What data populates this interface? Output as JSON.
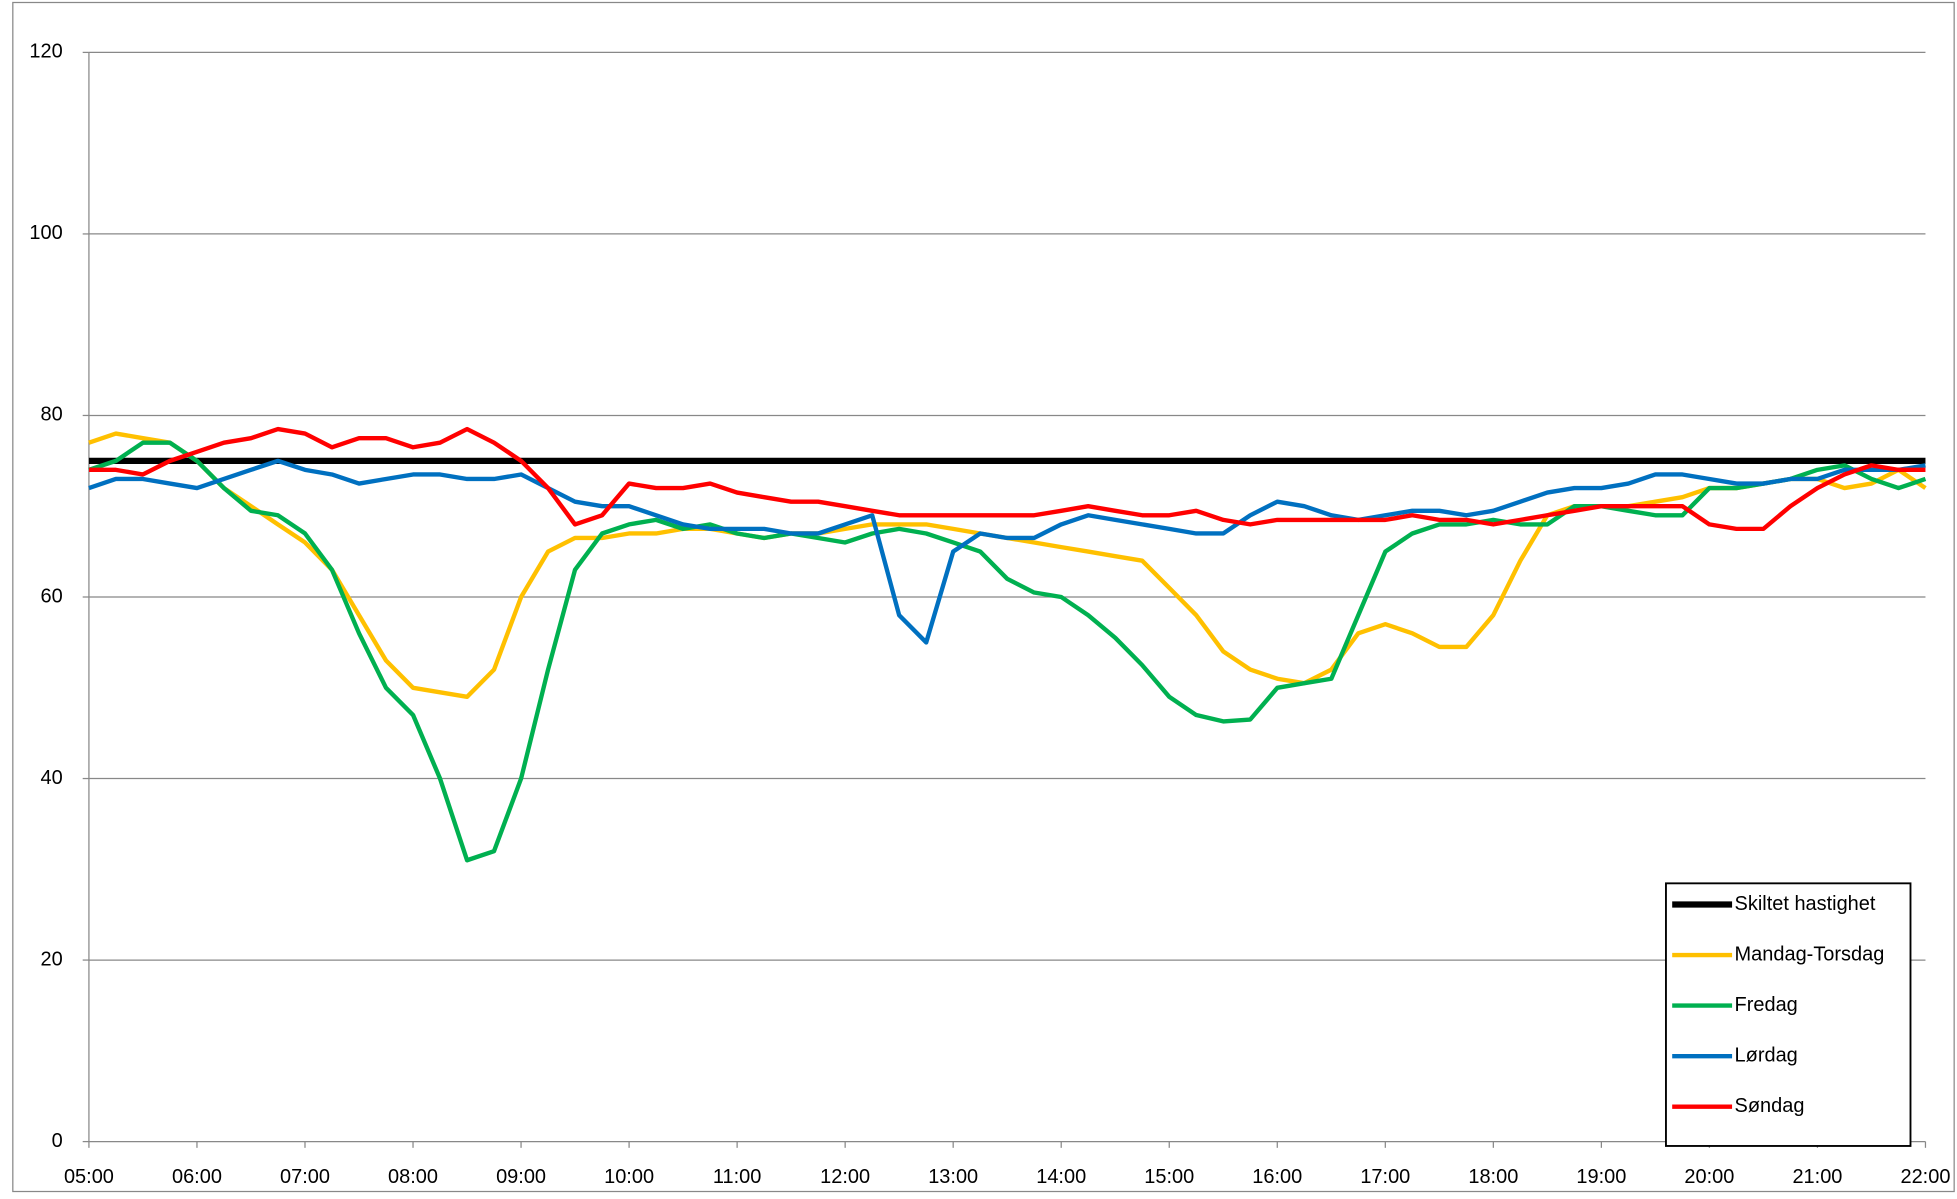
{
  "chart_data": {
    "type": "line",
    "categories": [
      "05:00",
      null,
      null,
      null,
      "06:00",
      null,
      null,
      null,
      "07:00",
      null,
      null,
      null,
      "08:00",
      null,
      null,
      null,
      "09:00",
      null,
      null,
      null,
      "10:00",
      null,
      null,
      null,
      "11:00",
      null,
      null,
      null,
      "12:00",
      null,
      null,
      null,
      "13:00",
      null,
      null,
      null,
      "14:00",
      null,
      null,
      null,
      "15:00",
      null,
      null,
      null,
      "16:00",
      null,
      null,
      null,
      "17:00",
      null,
      null,
      null,
      "18:00",
      null,
      null,
      null,
      "19:00",
      null,
      null,
      null,
      "20:00",
      null,
      null,
      null,
      "21:00",
      null,
      null,
      null,
      "22:00"
    ],
    "series": [
      {
        "name": "Skiltet hastighet",
        "color": "#000000",
        "values": [
          75,
          75,
          75,
          75,
          75,
          75,
          75,
          75,
          75,
          75,
          75,
          75,
          75,
          75,
          75,
          75,
          75,
          75,
          75,
          75,
          75,
          75,
          75,
          75,
          75,
          75,
          75,
          75,
          75,
          75,
          75,
          75,
          75,
          75,
          75,
          75,
          75,
          75,
          75,
          75,
          75,
          75,
          75,
          75,
          75,
          75,
          75,
          75,
          75,
          75,
          75,
          75,
          75,
          75,
          75,
          75,
          75,
          75,
          75,
          75,
          75,
          75,
          75,
          75,
          75,
          75,
          75,
          75,
          75
        ]
      },
      {
        "name": "Mandag-Torsdag",
        "color": "#FFC000",
        "values": [
          77,
          78,
          77.5,
          77,
          75,
          72,
          70,
          68,
          66,
          63,
          58,
          53,
          50,
          49.5,
          49,
          52,
          60,
          65,
          66.5,
          66.5,
          67,
          67,
          67.5,
          67.5,
          67,
          66.5,
          67,
          67,
          67.5,
          68,
          68,
          68,
          67.5,
          67,
          66.5,
          66,
          65.5,
          65,
          64.5,
          64,
          61,
          58,
          54,
          52,
          51,
          50.5,
          52,
          56,
          57,
          56,
          54.5,
          54.5,
          58,
          64,
          69,
          70,
          70,
          70,
          70.5,
          71,
          72,
          72,
          72.5,
          73,
          73,
          72,
          72.5,
          74,
          72
        ]
      },
      {
        "name": "Fredag",
        "color": "#00B050",
        "values": [
          74,
          75,
          77,
          77,
          75,
          72,
          69.5,
          69,
          67,
          63,
          56,
          50,
          47,
          40,
          31,
          32,
          40,
          52,
          63,
          67,
          68,
          68.5,
          67.5,
          68,
          67,
          66.5,
          67,
          66.5,
          66,
          67,
          67.5,
          67,
          66,
          65,
          62,
          60.5,
          60,
          58,
          55.5,
          52.5,
          49,
          47,
          46.3,
          46.5,
          50,
          50.5,
          51,
          58,
          65,
          67,
          68,
          68,
          68.5,
          68,
          68,
          70,
          70,
          69.5,
          69,
          69,
          72,
          72,
          72.5,
          73,
          74,
          74.5,
          73,
          72,
          73
        ]
      },
      {
        "name": "Lørdag",
        "color": "#0070C0",
        "values": [
          72,
          73,
          73,
          72.5,
          72,
          73,
          74,
          75,
          74,
          73.5,
          72.5,
          73,
          73.5,
          73.5,
          73,
          73,
          73.5,
          72,
          70.5,
          70,
          70,
          69,
          68,
          67.5,
          67.5,
          67.5,
          67,
          67,
          68,
          69,
          58,
          55,
          65,
          67,
          66.5,
          66.5,
          68,
          69,
          68.5,
          68,
          67.5,
          67,
          67,
          69,
          70.5,
          70,
          69,
          68.5,
          69,
          69.5,
          69.5,
          69,
          69.5,
          70.5,
          71.5,
          72,
          72,
          72.5,
          73.5,
          73.5,
          73,
          72.5,
          72.5,
          73,
          73,
          74,
          74,
          74,
          74.5
        ]
      },
      {
        "name": "Søndag",
        "color": "#FF0000",
        "values": [
          74,
          74,
          73.5,
          75,
          76,
          77,
          77.5,
          78.5,
          78,
          76.5,
          77.5,
          77.5,
          76.5,
          77,
          78.5,
          77,
          75,
          72,
          68,
          69,
          72.5,
          72,
          72,
          72.5,
          71.5,
          71,
          70.5,
          70.5,
          70,
          69.5,
          69,
          69,
          69,
          69,
          69,
          69,
          69.5,
          70,
          69.5,
          69,
          69,
          69.5,
          68.5,
          68,
          68.5,
          68.5,
          68.5,
          68.5,
          68.5,
          69,
          68.5,
          68.5,
          68,
          68.5,
          69,
          69.5,
          70,
          70,
          70,
          70,
          68,
          67.5,
          67.5,
          70,
          72,
          73.5,
          74.5,
          74,
          74
        ]
      }
    ],
    "ylim": [
      0,
      120
    ],
    "yticks": [
      0,
      20,
      40,
      60,
      80,
      100,
      120
    ],
    "grid": true,
    "legend": "lower right"
  }
}
